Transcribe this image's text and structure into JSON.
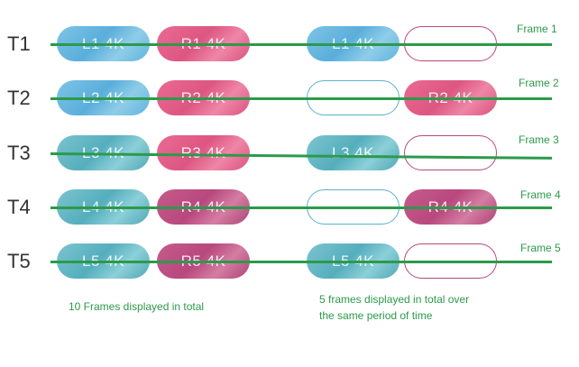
{
  "rows": [
    {
      "t_label": "T1",
      "left_pair": [
        {
          "text": "L1  4K",
          "color": "blue"
        },
        {
          "text": "R1  4K",
          "color": "red"
        }
      ],
      "right_pair": [
        {
          "text": "L1  4K",
          "color": "blue"
        },
        {
          "text": "",
          "color": "empty-red"
        }
      ],
      "frame_label": "Frame 1"
    },
    {
      "t_label": "T2",
      "left_pair": [
        {
          "text": "L2  4K",
          "color": "blue"
        },
        {
          "text": "R2  4K",
          "color": "red"
        }
      ],
      "right_pair": [
        {
          "text": "",
          "color": "empty-blue"
        },
        {
          "text": "R2  4K",
          "color": "red"
        }
      ],
      "frame_label": "Frame 2"
    },
    {
      "t_label": "T3",
      "left_pair": [
        {
          "text": "L3  4K",
          "color": "teal"
        },
        {
          "text": "R3  4K",
          "color": "red"
        }
      ],
      "right_pair": [
        {
          "text": "L3  4K",
          "color": "teal"
        },
        {
          "text": "",
          "color": "empty-red"
        }
      ],
      "frame_label": "Frame 3"
    },
    {
      "t_label": "T4",
      "left_pair": [
        {
          "text": "L4  4K",
          "color": "teal"
        },
        {
          "text": "R4  4K",
          "color": "purple"
        }
      ],
      "right_pair": [
        {
          "text": "",
          "color": "empty-blue"
        },
        {
          "text": "R4  4K",
          "color": "purple"
        }
      ],
      "frame_label": "Frame 4"
    },
    {
      "t_label": "T5",
      "left_pair": [
        {
          "text": "L5  4K",
          "color": "teal"
        },
        {
          "text": "R5  4K",
          "color": "purple"
        }
      ],
      "right_pair": [
        {
          "text": "L5  4K",
          "color": "teal"
        },
        {
          "text": "",
          "color": "empty-red"
        }
      ],
      "frame_label": "Frame  5"
    }
  ],
  "captions": {
    "left": "10 Frames displayed in total",
    "right_line1": "5 frames displayed in total over",
    "right_line2": "the same period of time"
  },
  "colors": {
    "line_green": "#2c9a4a",
    "text_green": "#2c9a4a",
    "t_label": "#333333"
  }
}
